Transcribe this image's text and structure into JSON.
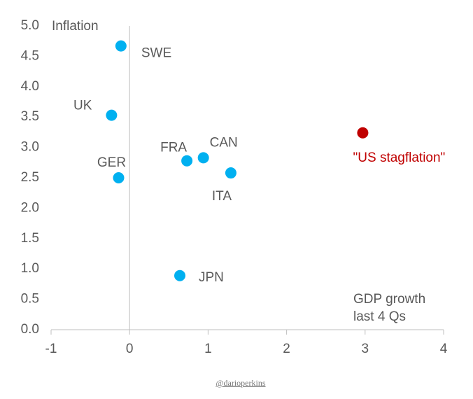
{
  "chart_data": {
    "type": "scatter",
    "y_label": "Inflation",
    "x_label": [
      "GDP growth",
      "last 4 Qs"
    ],
    "labels": [
      "SWE",
      "UK",
      "FRA",
      "CAN",
      "GER",
      "ITA",
      "JPN",
      "\"US stagflation\""
    ],
    "x": [
      -0.11,
      -0.23,
      0.73,
      0.94,
      -0.14,
      1.29,
      0.64,
      2.97
    ],
    "y": [
      4.67,
      3.53,
      2.78,
      2.83,
      2.5,
      2.58,
      0.89,
      3.24
    ],
    "colors": [
      "#00b0f0",
      "#00b0f0",
      "#00b0f0",
      "#00b0f0",
      "#00b0f0",
      "#00b0f0",
      "#00b0f0",
      "#c00000"
    ],
    "xlim": [
      -1,
      4
    ],
    "xticks": [
      -1,
      0,
      1,
      2,
      3,
      4
    ],
    "ylim": [
      0,
      5
    ],
    "yticks": [
      {
        "value": 0,
        "label": "0.0"
      },
      {
        "value": 0.5,
        "label": "0.5"
      },
      {
        "value": 1,
        "label": "1.0"
      },
      {
        "value": 1.5,
        "label": "1.5"
      },
      {
        "value": 2,
        "label": "2.0"
      },
      {
        "value": 2.5,
        "label": "2.5"
      },
      {
        "value": 3,
        "label": "3.0"
      },
      {
        "value": 3.5,
        "label": "3.5"
      },
      {
        "value": 4,
        "label": "4.0"
      },
      {
        "value": 4.5,
        "label": "4.5"
      },
      {
        "value": 5,
        "label": "5.0"
      }
    ],
    "source": "@darioperkins"
  }
}
